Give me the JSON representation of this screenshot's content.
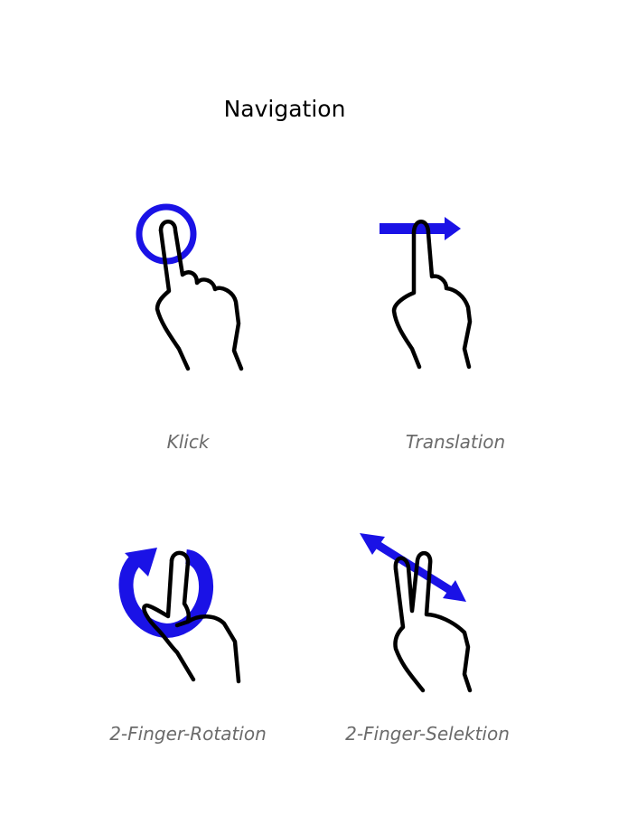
{
  "header": {
    "title": "Navigation"
  },
  "gestures": [
    {
      "label": "Klick",
      "icon": "tap-gesture-icon"
    },
    {
      "label": "Translation",
      "icon": "drag-gesture-icon"
    },
    {
      "label": "2-Finger-Rotation",
      "icon": "two-finger-rotate-icon"
    },
    {
      "label": "2-Finger-Selektion",
      "icon": "two-finger-select-icon"
    }
  ],
  "colors": {
    "accent": "#1a12e6",
    "stroke": "#000000",
    "caption": "#6b6b6b"
  }
}
